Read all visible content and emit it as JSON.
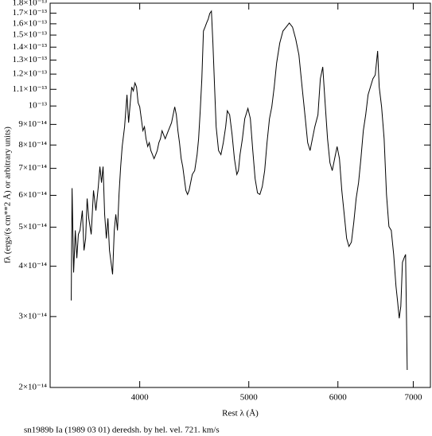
{
  "chart_data": {
    "type": "line",
    "title": "sn1989b Ia (1989 03 01) deredsh. by hel. vel.   721. km/s",
    "x_label": "Rest λ (Å)",
    "y_label": "fλ (ergs/(s cm**2 Å) or arbitrary units)",
    "log_x": true,
    "log_y": true,
    "color": "#000000",
    "xlim": [
      3330,
      7250
    ],
    "xticks": [
      4000,
      5000,
      6000,
      7000
    ],
    "ylim": [
      2e-14,
      1.8e-13
    ],
    "yticks": [
      {
        "value": 2e-14,
        "label": "2×10⁻¹⁴"
      },
      {
        "value": 3e-14,
        "label": "3×10⁻¹⁴"
      },
      {
        "value": 4e-14,
        "label": "4×10⁻¹⁴"
      },
      {
        "value": 5e-14,
        "label": "5×10⁻¹⁴"
      },
      {
        "value": 6e-14,
        "label": "6×10⁻¹⁴"
      },
      {
        "value": 7e-14,
        "label": "7×10⁻¹⁴"
      },
      {
        "value": 8e-14,
        "label": "8×10⁻¹⁴"
      },
      {
        "value": 9e-14,
        "label": "9×10⁻¹⁴"
      },
      {
        "value": 1e-13,
        "label": "10⁻¹³"
      },
      {
        "value": 1.1e-13,
        "label": "1.1×10⁻¹³"
      },
      {
        "value": 1.2e-13,
        "label": "1.2×10⁻¹³"
      },
      {
        "value": 1.3e-13,
        "label": "1.3×10⁻¹³"
      },
      {
        "value": 1.4e-13,
        "label": "1.4×10⁻¹³"
      },
      {
        "value": 1.5e-13,
        "label": "1.5×10⁻¹³"
      },
      {
        "value": 1.6e-13,
        "label": "1.6×10⁻¹³"
      },
      {
        "value": 1.7e-13,
        "label": "1.7×10⁻¹³"
      },
      {
        "value": 1.8e-13,
        "label": "1.8×10⁻¹³"
      }
    ],
    "x": [
      3477,
      3483,
      3494,
      3506,
      3517,
      3528,
      3540,
      3557,
      3569,
      3581,
      3592,
      3604,
      3622,
      3639,
      3657,
      3675,
      3687,
      3699,
      3711,
      3723,
      3736,
      3748,
      3760,
      3772,
      3784,
      3797,
      3809,
      3822,
      3834,
      3847,
      3859,
      3878,
      3897,
      3910,
      3923,
      3935,
      3948,
      3961,
      3974,
      3987,
      4000,
      4013,
      4026,
      4039,
      4052,
      4066,
      4079,
      4092,
      4106,
      4119,
      4133,
      4146,
      4160,
      4173,
      4187,
      4200,
      4214,
      4228,
      4241,
      4255,
      4269,
      4283,
      4297,
      4311,
      4325,
      4339,
      4354,
      4368,
      4382,
      4396,
      4411,
      4425,
      4439,
      4454,
      4476,
      4498,
      4512,
      4527,
      4542,
      4557,
      4572,
      4586,
      4602,
      4616,
      4632,
      4646,
      4662,
      4677,
      4700,
      4723,
      4746,
      4769,
      4785,
      4808,
      4832,
      4855,
      4879,
      4895,
      4911,
      4935,
      4959,
      4991,
      5016,
      5041,
      5065,
      5090,
      5115,
      5140,
      5165,
      5190,
      5216,
      5241,
      5267,
      5293,
      5327,
      5362,
      5397,
      5432,
      5468,
      5504,
      5540,
      5576,
      5613,
      5640,
      5668,
      5695,
      5723,
      5760,
      5788,
      5817,
      5845,
      5874,
      5903,
      5931,
      5960,
      5990,
      6019,
      6048,
      6078,
      6108,
      6137,
      6168,
      6198,
      6228,
      6259,
      6289,
      6320,
      6351,
      6382,
      6413,
      6445,
      6476,
      6508,
      6529,
      6561,
      6595,
      6627,
      6660,
      6692,
      6725,
      6757,
      6780,
      6802,
      6824,
      6847,
      6869,
      6891,
      6914
    ],
    "values": [
      3.29e-14,
      6.25e-14,
      3.86e-14,
      4.91e-14,
      4.19e-14,
      4.8e-14,
      4.91e-14,
      5.5e-14,
      4.38e-14,
      4.69e-14,
      5.89e-14,
      5.26e-14,
      4.8e-14,
      6.17e-14,
      5.5e-14,
      6.31e-14,
      7.07e-14,
      6.45e-14,
      7.07e-14,
      5.38e-14,
      4.69e-14,
      5.26e-14,
      4.38e-14,
      4.09e-14,
      3.82e-14,
      4.91e-14,
      5.38e-14,
      4.91e-14,
      6.03e-14,
      7.07e-14,
      7.93e-14,
      8.88e-14,
      1.066e-13,
      9.09e-14,
      1.018e-13,
      1.115e-13,
      1.09e-13,
      1.141e-13,
      1.115e-13,
      1.018e-13,
      9.95e-14,
      9.3e-14,
      8.68e-14,
      8.88e-14,
      8.29e-14,
      7.93e-14,
      8.11e-14,
      7.75e-14,
      7.57e-14,
      7.4e-14,
      7.57e-14,
      7.75e-14,
      8.11e-14,
      8.29e-14,
      8.68e-14,
      8.49e-14,
      8.29e-14,
      8.49e-14,
      8.68e-14,
      8.88e-14,
      9.09e-14,
      9.51e-14,
      9.95e-14,
      9.51e-14,
      8.68e-14,
      8.11e-14,
      7.4e-14,
      7.07e-14,
      6.6e-14,
      6.17e-14,
      6.03e-14,
      6.17e-14,
      6.45e-14,
      6.76e-14,
      6.91e-14,
      7.57e-14,
      8.29e-14,
      9.73e-14,
      1.168e-13,
      1.535e-13,
      1.57e-13,
      1.607e-13,
      1.644e-13,
      1.697e-13,
      1.72e-13,
      1.433e-13,
      1.115e-13,
      8.88e-14,
      7.75e-14,
      7.57e-14,
      8.11e-14,
      8.88e-14,
      9.73e-14,
      9.51e-14,
      8.49e-14,
      7.4e-14,
      6.76e-14,
      6.91e-14,
      7.57e-14,
      8.29e-14,
      9.3e-14,
      9.86e-14,
      9.3e-14,
      7.75e-14,
      6.6e-14,
      6.08e-14,
      6.03e-14,
      6.31e-14,
      6.91e-14,
      8.11e-14,
      9.3e-14,
      9.95e-14,
      1.115e-13,
      1.279e-13,
      1.433e-13,
      1.535e-13,
      1.57e-13,
      1.607e-13,
      1.57e-13,
      1.466e-13,
      1.339e-13,
      1.115e-13,
      9.3e-14,
      8.11e-14,
      7.75e-14,
      8.29e-14,
      8.88e-14,
      9.51e-14,
      1.168e-13,
      1.25e-13,
      1.018e-13,
      8.29e-14,
      7.23e-14,
      6.91e-14,
      7.4e-14,
      7.93e-14,
      7.4e-14,
      6.17e-14,
      5.38e-14,
      4.69e-14,
      4.48e-14,
      4.59e-14,
      5.14e-14,
      5.89e-14,
      6.45e-14,
      7.4e-14,
      8.68e-14,
      9.51e-14,
      1.066e-13,
      1.115e-13,
      1.168e-13,
      1.194e-13,
      1.37e-13,
      1.115e-13,
      9.95e-14,
      8.29e-14,
      6.03e-14,
      5.02e-14,
      4.91e-14,
      4.28e-14,
      3.57e-14,
      3.26e-14,
      2.97e-14,
      3.18e-14,
      4.09e-14,
      4.19e-14,
      4.28e-14,
      2.21e-14
    ]
  }
}
